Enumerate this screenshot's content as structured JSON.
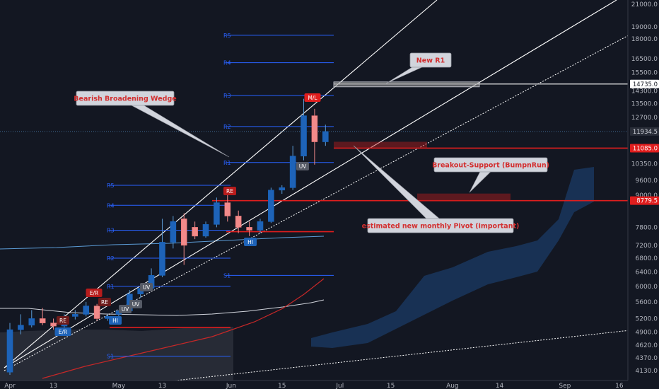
{
  "chart_data": {
    "type": "candlestick",
    "y_scale": "log",
    "ylim": [
      3950,
      21000
    ],
    "y_ticks": [
      21000,
      19000,
      18000,
      16500,
      15500,
      14300,
      13500,
      12700,
      12000,
      11000,
      10350,
      9600,
      9000,
      7800,
      7200,
      6800,
      6400,
      6000,
      5600,
      5200,
      4900,
      4620,
      4370,
      4130
    ],
    "y_tick_labels": [
      "21000.0",
      "19000.0",
      "18000.0",
      "16500.0",
      "15500.0",
      "14300.0",
      "13500.0",
      "12700.0",
      "12000.0",
      "11000.0",
      "10350.0",
      "9600.0",
      "9000.0",
      "7800.0",
      "7200.0",
      "6800.0",
      "6400.0",
      "6000.0",
      "5600.0",
      "5200.0",
      "4900.0",
      "4620.0",
      "4370.0",
      "4130.0"
    ],
    "x_labels": [
      {
        "label": "Apr",
        "date": "2019-04-01"
      },
      {
        "label": "13",
        "date": "2019-04-13"
      },
      {
        "label": "May",
        "date": "2019-05-01"
      },
      {
        "label": "13",
        "date": "2019-05-13"
      },
      {
        "label": "Jun",
        "date": "2019-06-01"
      },
      {
        "label": "15",
        "date": "2019-06-15"
      },
      {
        "label": "Jul",
        "date": "2019-07-01"
      },
      {
        "label": "15",
        "date": "2019-07-15"
      },
      {
        "label": "Aug",
        "date": "2019-08-01"
      },
      {
        "label": "14",
        "date": "2019-08-14"
      },
      {
        "label": "Sep",
        "date": "2019-09-01"
      },
      {
        "label": "16",
        "date": "2019-09-16"
      }
    ],
    "candles": [
      {
        "date": "2019-04-01",
        "o": 4100,
        "h": 5100,
        "l": 4050,
        "c": 4950
      },
      {
        "date": "2019-04-04",
        "o": 4950,
        "h": 5300,
        "l": 4850,
        "c": 5050
      },
      {
        "date": "2019-04-07",
        "o": 5050,
        "h": 5400,
        "l": 5000,
        "c": 5200
      },
      {
        "date": "2019-04-10",
        "o": 5200,
        "h": 5450,
        "l": 5050,
        "c": 5100
      },
      {
        "date": "2019-04-13",
        "o": 5100,
        "h": 5200,
        "l": 4950,
        "c": 5030
      },
      {
        "date": "2019-04-16",
        "o": 5030,
        "h": 5300,
        "l": 5000,
        "c": 5250
      },
      {
        "date": "2019-04-19",
        "o": 5250,
        "h": 5400,
        "l": 5180,
        "c": 5300
      },
      {
        "date": "2019-04-22",
        "o": 5300,
        "h": 5600,
        "l": 5250,
        "c": 5500
      },
      {
        "date": "2019-04-25",
        "o": 5500,
        "h": 5550,
        "l": 5150,
        "c": 5200
      },
      {
        "date": "2019-04-28",
        "o": 5200,
        "h": 5300,
        "l": 5150,
        "c": 5250
      },
      {
        "date": "2019-05-01",
        "o": 5300,
        "h": 5400,
        "l": 5250,
        "c": 5380
      },
      {
        "date": "2019-05-04",
        "o": 5380,
        "h": 5900,
        "l": 5350,
        "c": 5800
      },
      {
        "date": "2019-05-07",
        "o": 5800,
        "h": 6000,
        "l": 5700,
        "c": 5950
      },
      {
        "date": "2019-05-10",
        "o": 5950,
        "h": 6500,
        "l": 5900,
        "c": 6300
      },
      {
        "date": "2019-05-13",
        "o": 6300,
        "h": 8100,
        "l": 6250,
        "c": 7300
      },
      {
        "date": "2019-05-16",
        "o": 7300,
        "h": 8200,
        "l": 7100,
        "c": 8000
      },
      {
        "date": "2019-05-19",
        "o": 8100,
        "h": 8300,
        "l": 6600,
        "c": 7200
      },
      {
        "date": "2019-05-22",
        "o": 7800,
        "h": 8000,
        "l": 7400,
        "c": 7500
      },
      {
        "date": "2019-05-25",
        "o": 7500,
        "h": 8000,
        "l": 7450,
        "c": 7900
      },
      {
        "date": "2019-05-28",
        "o": 7900,
        "h": 8900,
        "l": 7800,
        "c": 8700
      },
      {
        "date": "2019-05-31",
        "o": 8700,
        "h": 9000,
        "l": 8000,
        "c": 8200
      },
      {
        "date": "2019-06-03",
        "o": 8200,
        "h": 8400,
        "l": 7600,
        "c": 7800
      },
      {
        "date": "2019-06-06",
        "o": 7800,
        "h": 8000,
        "l": 7500,
        "c": 7700
      },
      {
        "date": "2019-06-09",
        "o": 7700,
        "h": 8100,
        "l": 7600,
        "c": 8000
      },
      {
        "date": "2019-06-12",
        "o": 8000,
        "h": 9300,
        "l": 7950,
        "c": 9200
      },
      {
        "date": "2019-06-15",
        "o": 9200,
        "h": 9400,
        "l": 9050,
        "c": 9300
      },
      {
        "date": "2019-06-18",
        "o": 9300,
        "h": 11200,
        "l": 9200,
        "c": 10700
      },
      {
        "date": "2019-06-21",
        "o": 10700,
        "h": 13800,
        "l": 10500,
        "c": 12800
      },
      {
        "date": "2019-06-24",
        "o": 12800,
        "h": 13200,
        "l": 10300,
        "c": 11400
      },
      {
        "date": "2019-06-27",
        "o": 11400,
        "h": 12300,
        "l": 11200,
        "c": 11934.5
      }
    ],
    "pivot_levels": [
      {
        "label": "R5",
        "value": 18300
      },
      {
        "label": "R4",
        "value": 16200
      },
      {
        "label": "R3",
        "value": 14000
      },
      {
        "label": "R2",
        "value": 12200
      },
      {
        "label": "R1",
        "value": 10400
      },
      {
        "label": "R5",
        "value": 9400
      },
      {
        "label": "R4",
        "value": 8600
      },
      {
        "label": "R3",
        "value": 7700
      },
      {
        "label": "R2",
        "value": 6800
      },
      {
        "label": "R1",
        "value": 6000
      },
      {
        "label": "S1",
        "value": 6300
      },
      {
        "label": "S1",
        "value": 4400
      }
    ],
    "current_price": {
      "value": 11934.5,
      "label": "11934.5"
    },
    "level_tags": [
      {
        "value": 14735.0,
        "label": "14735.0"
      },
      {
        "value": 11085.0,
        "label": "11085.0"
      },
      {
        "value": 8779.5,
        "label": "8779.5"
      }
    ],
    "annotations": [
      {
        "text": "Bearish Broadening Wedge"
      },
      {
        "text": "New R1"
      },
      {
        "text": "Breakout-Support (BumpnRun)"
      },
      {
        "text": "estimated new monthly Pivot (important)"
      }
    ],
    "signal_tags": [
      "RE",
      "E/R",
      "RE",
      "E/R",
      "UV",
      "UV",
      "HI",
      "UV",
      "RE",
      "HI",
      "UV",
      "M/L"
    ],
    "colors": {
      "background": "#131722",
      "bull": "#1e63b8",
      "bear": "#f28a8a",
      "pivot": "#2962ff",
      "support": "#e01e1e",
      "wedge": "#ffffff",
      "cloud": "#1b3b66"
    }
  }
}
